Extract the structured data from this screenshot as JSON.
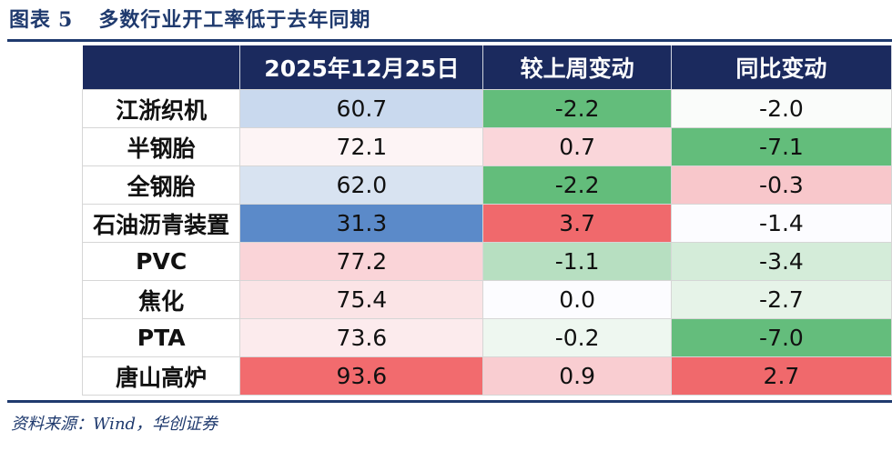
{
  "title": {
    "label": "图表",
    "number": "5",
    "text": "多数行业开工率低于去年同期"
  },
  "chart_data": {
    "type": "table",
    "columns": [
      "",
      "2025年12月25日",
      "较上周变动",
      "同比变动"
    ],
    "rows": [
      {
        "name": "江浙织机",
        "values": [
          "60.7",
          "-2.2",
          "-2.0"
        ],
        "colors": [
          "#c9d9ee",
          "#63bd7b",
          "#fafcfa"
        ]
      },
      {
        "name": "半钢胎",
        "values": [
          "72.1",
          "0.7",
          "-7.1"
        ],
        "colors": [
          "#fdf4f5",
          "#fad6da",
          "#63bd7b"
        ]
      },
      {
        "name": "全钢胎",
        "values": [
          "62.0",
          "-2.2",
          "-0.3"
        ],
        "colors": [
          "#d8e3f1",
          "#63bd7b",
          "#f8c7cb"
        ]
      },
      {
        "name": "石油沥青装置",
        "values": [
          "31.3",
          "3.7",
          "-1.4"
        ],
        "colors": [
          "#5b8ac9",
          "#f0696c",
          "#fcfcff"
        ]
      },
      {
        "name": "PVC",
        "values": [
          "77.2",
          "-1.1",
          "-3.4"
        ],
        "colors": [
          "#fad4d8",
          "#b7dfc1",
          "#d4ecd9"
        ]
      },
      {
        "name": "焦化",
        "values": [
          "75.4",
          "0.0",
          "-2.7"
        ],
        "colors": [
          "#fbe4e6",
          "#fcfcff",
          "#e6f3e8"
        ]
      },
      {
        "name": "PTA",
        "values": [
          "73.6",
          "-0.2",
          "-7.0"
        ],
        "colors": [
          "#fcebed",
          "#eef7f0",
          "#64bd7c"
        ]
      },
      {
        "name": "唐山高炉",
        "values": [
          "93.6",
          "0.9",
          "2.7"
        ],
        "colors": [
          "#f26b6e",
          "#f9cdd1",
          "#f0696c"
        ]
      }
    ]
  },
  "source": "资料来源：Wind，华创证券"
}
